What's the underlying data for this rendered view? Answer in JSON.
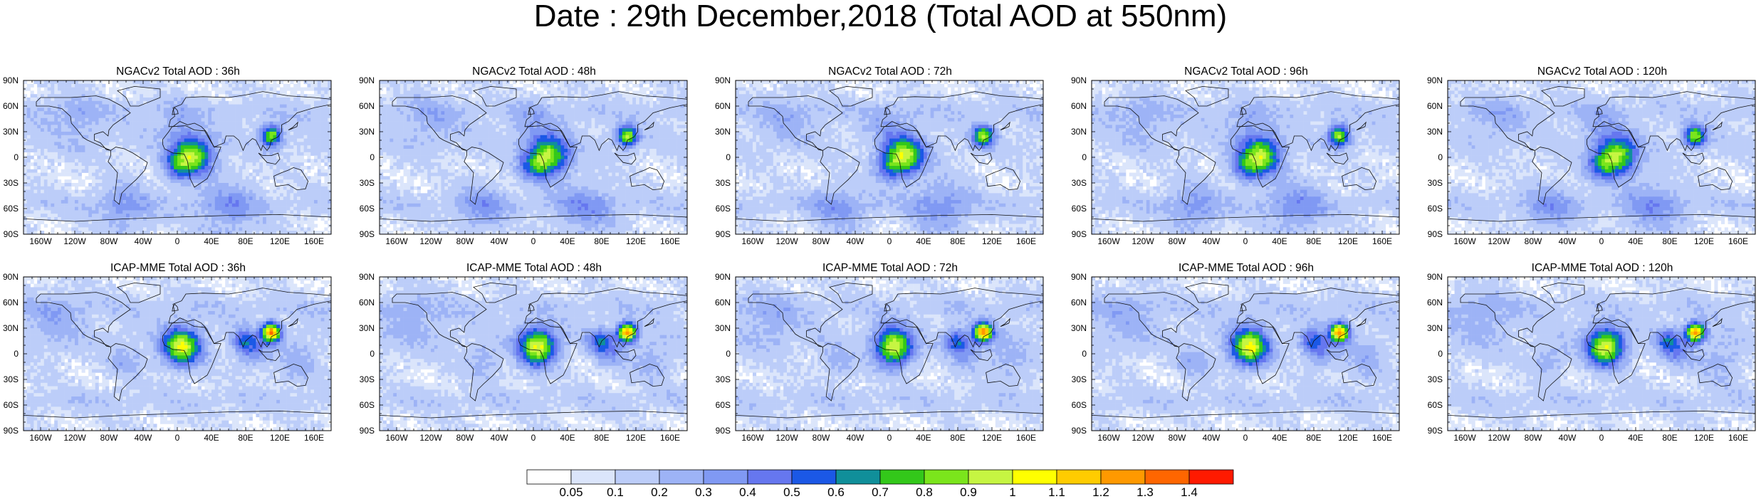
{
  "title": "Date : 29th December,2018 (Total AOD at 550nm)",
  "lat_labels": [
    "90N",
    "60N",
    "30N",
    "0",
    "30S",
    "60S",
    "90S"
  ],
  "lon_labels": [
    "160W",
    "120W",
    "80W",
    "40W",
    "0",
    "40E",
    "80E",
    "120E",
    "160E"
  ],
  "panels": [
    {
      "title": "NGACv2 Total AOD : 36h",
      "model": "NGACv2",
      "lead": 36
    },
    {
      "title": "NGACv2 Total AOD : 48h",
      "model": "NGACv2",
      "lead": 48
    },
    {
      "title": "NGACv2 Total AOD : 72h",
      "model": "NGACv2",
      "lead": 72
    },
    {
      "title": "NGACv2 Total AOD : 96h",
      "model": "NGACv2",
      "lead": 96
    },
    {
      "title": "NGACv2 Total AOD : 120h",
      "model": "NGACv2",
      "lead": 120
    },
    {
      "title": "ICAP-MME Total AOD : 36h",
      "model": "ICAP-MME",
      "lead": 36
    },
    {
      "title": "ICAP-MME Total AOD : 48h",
      "model": "ICAP-MME",
      "lead": 48
    },
    {
      "title": "ICAP-MME Total AOD : 72h",
      "model": "ICAP-MME",
      "lead": 72
    },
    {
      "title": "ICAP-MME Total AOD : 96h",
      "model": "ICAP-MME",
      "lead": 96
    },
    {
      "title": "ICAP-MME Total AOD : 120h",
      "model": "ICAP-MME",
      "lead": 120
    }
  ],
  "colorbar": {
    "labels": [
      "0.05",
      "0.1",
      "0.2",
      "0.3",
      "0.4",
      "0.5",
      "0.6",
      "0.7",
      "0.8",
      "0.9",
      "1",
      "1.1",
      "1.2",
      "1.3",
      "1.4"
    ],
    "colors": [
      "#ffffff",
      "#dbe5fb",
      "#bccdf9",
      "#9db3f6",
      "#8099f3",
      "#6677ef",
      "#1b58e6",
      "#108f9a",
      "#33c81a",
      "#7be51c",
      "#c6f542",
      "#ffff00",
      "#ffcc00",
      "#ff9900",
      "#ff6600",
      "#ff1a00"
    ]
  }
}
